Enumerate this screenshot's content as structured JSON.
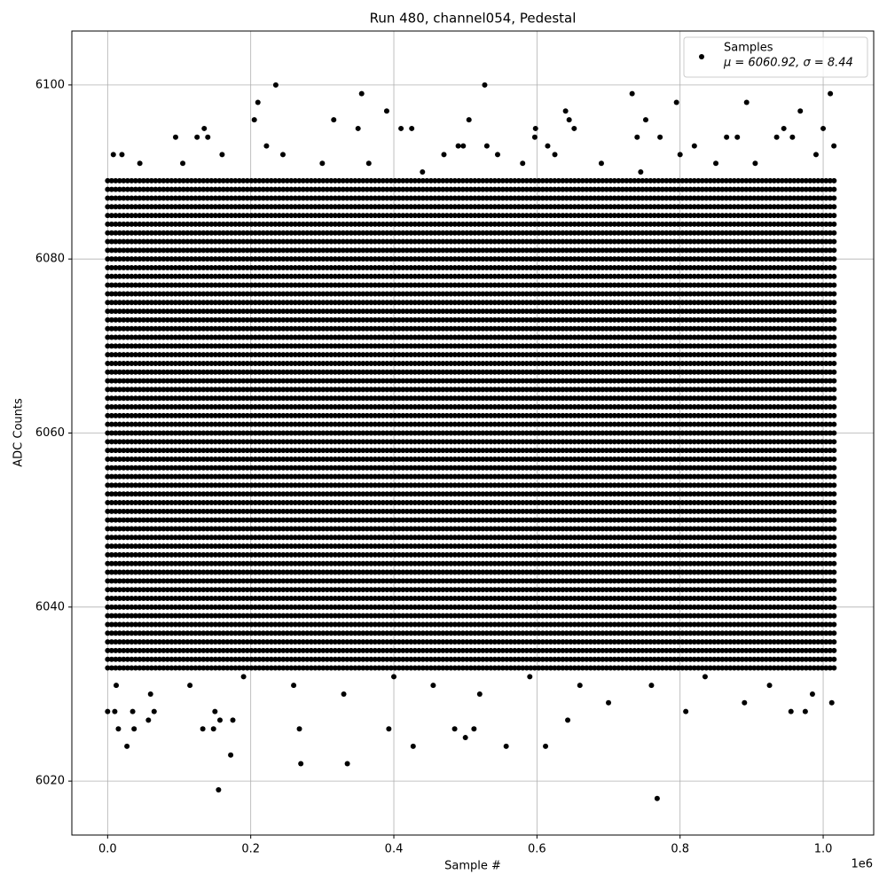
{
  "chart_data": {
    "type": "scatter",
    "title": "Run 480, channel054, Pedestal",
    "xlabel": "Sample #",
    "ylabel": "ADC Counts",
    "x_offset_label": "1e6",
    "xlim": [
      -50000,
      1070600
    ],
    "ylim": [
      6013.8,
      6106.2
    ],
    "xticks": [
      {
        "value": 0,
        "label": "0.0"
      },
      {
        "value": 200000,
        "label": "0.2"
      },
      {
        "value": 400000,
        "label": "0.4"
      },
      {
        "value": 600000,
        "label": "0.6"
      },
      {
        "value": 800000,
        "label": "0.8"
      },
      {
        "value": 1000000,
        "label": "1.0"
      }
    ],
    "yticks": [
      6020,
      6040,
      6060,
      6080,
      6100
    ],
    "grid": true,
    "legend": "upper right",
    "series": [
      {
        "name": "Samples",
        "legend_stats": "μ = 6060.92, σ = 8.44",
        "color": "#000000",
        "x": [
          235000,
          527000,
          355000,
          733000,
          1010000,
          210000,
          795000,
          893000,
          390000,
          640000,
          968000,
          205000,
          316000,
          505000,
          645000,
          752000,
          135000,
          350000,
          410000,
          425000,
          598000,
          652000,
          945000,
          1000000,
          95000,
          125000,
          140000,
          597000,
          740000,
          772000,
          865000,
          880000,
          935000,
          957000,
          222000,
          490000,
          497000,
          530000,
          615000,
          820000,
          1015000,
          155000,
          768000,
          172000,
          27000,
          270000,
          335000,
          427000,
          557000,
          612000,
          500000,
          15000,
          37000,
          133000,
          148000,
          268000,
          393000,
          485000,
          512000,
          157000,
          175000,
          57000,
          643000,
          0,
          10000,
          35000,
          65000,
          150000,
          1012000,
          955000,
          975000,
          808000,
          8000,
          20000,
          45000,
          105000,
          160000,
          245000,
          300000,
          365000,
          440000,
          470000,
          545000,
          580000,
          625000,
          690000,
          745000,
          800000,
          850000,
          905000,
          990000,
          12000,
          60000,
          115000,
          190000,
          260000,
          330000,
          400000,
          455000,
          520000,
          590000,
          660000,
          700000,
          760000,
          835000,
          890000,
          925000,
          985000
        ],
        "y": [
          6100,
          6100,
          6099,
          6099,
          6099,
          6098,
          6098,
          6098,
          6097,
          6097,
          6097,
          6096,
          6096,
          6096,
          6096,
          6096,
          6095,
          6095,
          6095,
          6095,
          6095,
          6095,
          6095,
          6095,
          6094,
          6094,
          6094,
          6094,
          6094,
          6094,
          6094,
          6094,
          6094,
          6094,
          6093,
          6093,
          6093,
          6093,
          6093,
          6093,
          6093,
          6019,
          6018,
          6023,
          6024,
          6022,
          6022,
          6024,
          6024,
          6024,
          6025,
          6026,
          6026,
          6026,
          6026,
          6026,
          6026,
          6026,
          6026,
          6027,
          6027,
          6027,
          6027,
          6028,
          6028,
          6028,
          6028,
          6028,
          6029,
          6028,
          6028,
          6028,
          6092,
          6092,
          6091,
          6091,
          6092,
          6092,
          6091,
          6091,
          6090,
          6092,
          6092,
          6091,
          6092,
          6091,
          6090,
          6092,
          6091,
          6091,
          6092,
          6031,
          6030,
          6031,
          6032,
          6031,
          6030,
          6032,
          6031,
          6030,
          6032,
          6031,
          6029,
          6031,
          6032,
          6029,
          6031,
          6030
        ]
      }
    ],
    "dense_rows": {
      "x_range": [
        0,
        1020000
      ],
      "y": [
        6033,
        6034,
        6035,
        6036,
        6037,
        6038,
        6039,
        6040,
        6041,
        6042,
        6043,
        6044,
        6045,
        6046,
        6047,
        6048,
        6049,
        6050,
        6051,
        6052,
        6053,
        6054,
        6055,
        6056,
        6057,
        6058,
        6059,
        6060,
        6061,
        6062,
        6063,
        6064,
        6065,
        6066,
        6067,
        6068,
        6069,
        6070,
        6071,
        6072,
        6073,
        6074,
        6075,
        6076,
        6077,
        6078,
        6079,
        6080,
        6081,
        6082,
        6083,
        6084,
        6085,
        6086,
        6087,
        6088,
        6089
      ]
    }
  }
}
